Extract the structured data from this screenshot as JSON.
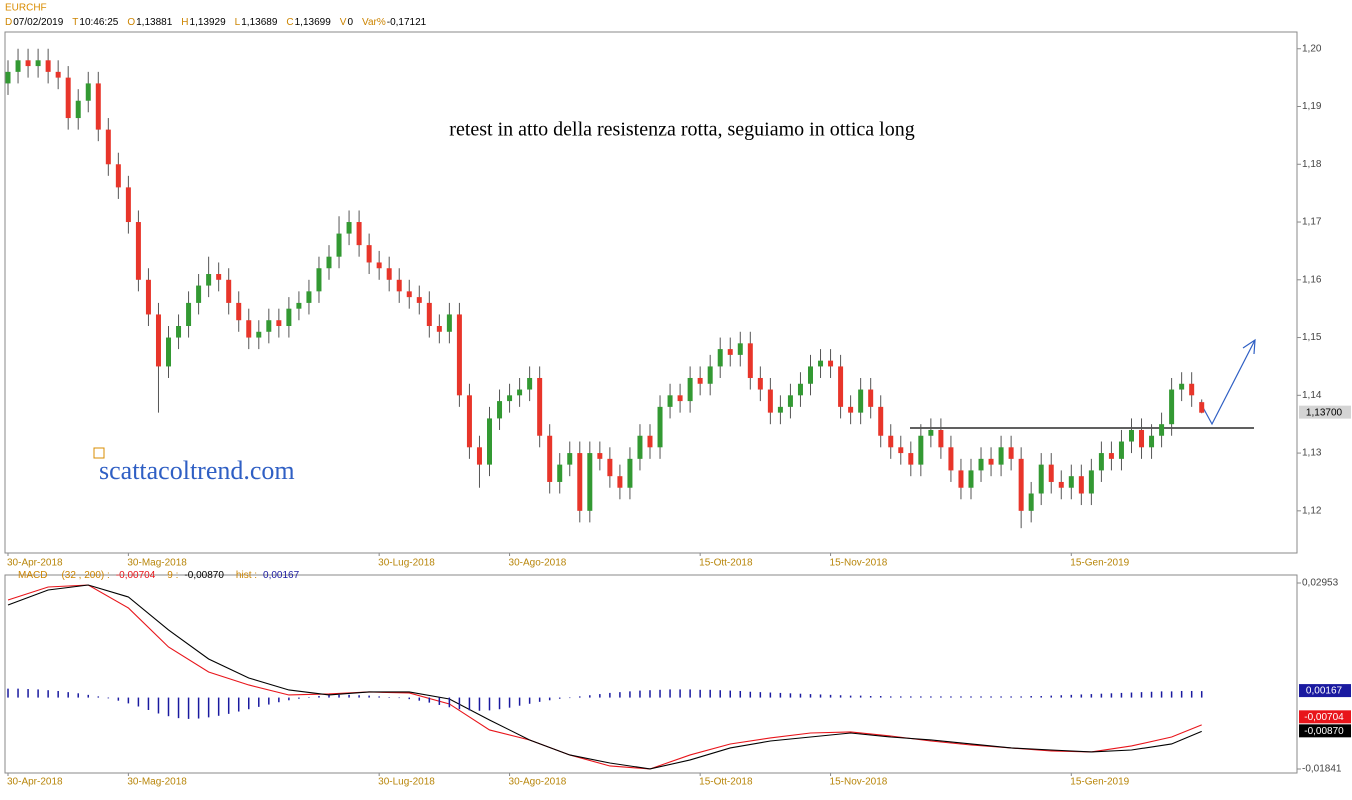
{
  "chart_data": [
    {
      "type": "candlestick",
      "title": "EURCHF",
      "info": [
        {
          "key": "D",
          "value": "07/02/2019"
        },
        {
          "key": "T",
          "value": "10:46:25"
        },
        {
          "key": "O",
          "value": "1,13881"
        },
        {
          "key": "H",
          "value": "1,13929"
        },
        {
          "key": "L",
          "value": "1,13689"
        },
        {
          "key": "C",
          "value": "1,13699"
        },
        {
          "key": "V",
          "value": "0"
        },
        {
          "key": "Var%",
          "value": "-0,17121"
        }
      ],
      "annotation": "retest in atto della resistenza rotta, seguiamo in ottica long",
      "watermark": "scattacoltrend.com",
      "up_color": "#339933",
      "down_color": "#e8352a",
      "wick_color": "#555555",
      "xlim": [
        -0.3,
        128.5
      ],
      "xticks": [
        {
          "value": 0,
          "label": "30-Apr-2018"
        },
        {
          "value": 12,
          "label": "30-Mag-2018"
        },
        {
          "value": 37,
          "label": "30-Lug-2018"
        },
        {
          "value": 50,
          "label": "30-Ago-2018"
        },
        {
          "value": 69,
          "label": "15-Ott-2018"
        },
        {
          "value": 82,
          "label": "15-Nov-2018"
        },
        {
          "value": 106,
          "label": "15-Gen-2019"
        }
      ],
      "ylim": [
        1.1127,
        1.2029
      ],
      "yticks": [
        {
          "value": 1.12,
          "label": "1,12"
        },
        {
          "value": 1.13,
          "label": "1,13"
        },
        {
          "value": 1.14,
          "label": "1,14"
        },
        {
          "value": 1.15,
          "label": "1,15"
        },
        {
          "value": 1.16,
          "label": "1,16"
        },
        {
          "value": 1.17,
          "label": "1,17"
        },
        {
          "value": 1.18,
          "label": "1,18"
        },
        {
          "value": 1.19,
          "label": "1,19"
        },
        {
          "value": 1.2,
          "label": "1,20"
        }
      ],
      "last_price": {
        "value": 1.137,
        "label": "1,13700"
      },
      "open": [
        1.194,
        1.196,
        1.198,
        1.197,
        1.198,
        1.196,
        1.195,
        1.188,
        1.191,
        1.194,
        1.186,
        1.18,
        1.176,
        1.17,
        1.16,
        1.154,
        1.145,
        1.15,
        1.152,
        1.156,
        1.159,
        1.161,
        1.16,
        1.156,
        1.153,
        1.15,
        1.151,
        1.153,
        1.152,
        1.155,
        1.156,
        1.158,
        1.162,
        1.164,
        1.168,
        1.17,
        1.166,
        1.163,
        1.162,
        1.16,
        1.158,
        1.157,
        1.156,
        1.152,
        1.151,
        1.154,
        1.14,
        1.131,
        1.128,
        1.136,
        1.139,
        1.14,
        1.141,
        1.143,
        1.133,
        1.125,
        1.128,
        1.13,
        1.12,
        1.13,
        1.129,
        1.126,
        1.124,
        1.129,
        1.133,
        1.131,
        1.138,
        1.14,
        1.139,
        1.143,
        1.142,
        1.145,
        1.148,
        1.147,
        1.149,
        1.143,
        1.141,
        1.137,
        1.138,
        1.14,
        1.142,
        1.145,
        1.146,
        1.145,
        1.138,
        1.137,
        1.141,
        1.138,
        1.133,
        1.131,
        1.13,
        1.128,
        1.133,
        1.134,
        1.131,
        1.127,
        1.124,
        1.127,
        1.129,
        1.128,
        1.131,
        1.129,
        1.12,
        1.123,
        1.128,
        1.125,
        1.124,
        1.126,
        1.123,
        1.127,
        1.13,
        1.129,
        1.132,
        1.134,
        1.131,
        1.133,
        1.135,
        1.141,
        1.142,
        1.13881
      ],
      "high": [
        1.198,
        1.2,
        1.2,
        1.2,
        1.2,
        1.198,
        1.197,
        1.193,
        1.196,
        1.196,
        1.188,
        1.182,
        1.178,
        1.172,
        1.162,
        1.156,
        1.152,
        1.154,
        1.158,
        1.161,
        1.164,
        1.163,
        1.162,
        1.158,
        1.155,
        1.153,
        1.155,
        1.155,
        1.157,
        1.158,
        1.16,
        1.164,
        1.166,
        1.171,
        1.172,
        1.172,
        1.168,
        1.165,
        1.164,
        1.162,
        1.16,
        1.159,
        1.158,
        1.154,
        1.156,
        1.156,
        1.142,
        1.133,
        1.138,
        1.141,
        1.142,
        1.143,
        1.145,
        1.145,
        1.135,
        1.13,
        1.132,
        1.132,
        1.132,
        1.132,
        1.131,
        1.128,
        1.131,
        1.135,
        1.135,
        1.14,
        1.142,
        1.142,
        1.145,
        1.145,
        1.147,
        1.15,
        1.15,
        1.151,
        1.151,
        1.145,
        1.143,
        1.14,
        1.142,
        1.144,
        1.147,
        1.148,
        1.148,
        1.147,
        1.14,
        1.143,
        1.143,
        1.14,
        1.135,
        1.133,
        1.132,
        1.135,
        1.136,
        1.136,
        1.133,
        1.129,
        1.129,
        1.131,
        1.131,
        1.133,
        1.133,
        1.131,
        1.125,
        1.13,
        1.13,
        1.127,
        1.128,
        1.128,
        1.129,
        1.132,
        1.132,
        1.134,
        1.136,
        1.136,
        1.135,
        1.137,
        1.143,
        1.144,
        1.144,
        1.13929
      ],
      "low": [
        1.192,
        1.194,
        1.195,
        1.195,
        1.194,
        1.193,
        1.186,
        1.186,
        1.189,
        1.184,
        1.178,
        1.174,
        1.168,
        1.158,
        1.152,
        1.137,
        1.143,
        1.148,
        1.15,
        1.154,
        1.157,
        1.158,
        1.154,
        1.151,
        1.148,
        1.148,
        1.149,
        1.15,
        1.15,
        1.153,
        1.154,
        1.156,
        1.16,
        1.162,
        1.166,
        1.164,
        1.161,
        1.16,
        1.158,
        1.156,
        1.155,
        1.154,
        1.15,
        1.149,
        1.149,
        1.138,
        1.129,
        1.124,
        1.126,
        1.134,
        1.137,
        1.138,
        1.139,
        1.131,
        1.123,
        1.123,
        1.126,
        1.118,
        1.118,
        1.127,
        1.124,
        1.122,
        1.122,
        1.127,
        1.129,
        1.129,
        1.136,
        1.137,
        1.137,
        1.14,
        1.14,
        1.143,
        1.145,
        1.145,
        1.141,
        1.139,
        1.135,
        1.135,
        1.136,
        1.138,
        1.14,
        1.143,
        1.143,
        1.136,
        1.135,
        1.135,
        1.136,
        1.131,
        1.129,
        1.128,
        1.126,
        1.126,
        1.131,
        1.129,
        1.125,
        1.122,
        1.122,
        1.125,
        1.126,
        1.126,
        1.127,
        1.117,
        1.118,
        1.121,
        1.123,
        1.122,
        1.122,
        1.121,
        1.121,
        1.125,
        1.127,
        1.127,
        1.13,
        1.129,
        1.129,
        1.131,
        1.133,
        1.139,
        1.138,
        1.13689
      ],
      "close": [
        1.196,
        1.198,
        1.197,
        1.198,
        1.196,
        1.195,
        1.188,
        1.191,
        1.194,
        1.186,
        1.18,
        1.176,
        1.17,
        1.16,
        1.154,
        1.145,
        1.15,
        1.152,
        1.156,
        1.159,
        1.161,
        1.16,
        1.156,
        1.153,
        1.15,
        1.151,
        1.153,
        1.152,
        1.155,
        1.156,
        1.158,
        1.162,
        1.164,
        1.168,
        1.17,
        1.166,
        1.163,
        1.162,
        1.16,
        1.158,
        1.157,
        1.156,
        1.152,
        1.151,
        1.154,
        1.14,
        1.131,
        1.128,
        1.136,
        1.139,
        1.14,
        1.141,
        1.143,
        1.133,
        1.125,
        1.128,
        1.13,
        1.12,
        1.13,
        1.129,
        1.126,
        1.124,
        1.129,
        1.133,
        1.131,
        1.138,
        1.14,
        1.139,
        1.143,
        1.142,
        1.145,
        1.148,
        1.147,
        1.149,
        1.143,
        1.141,
        1.137,
        1.138,
        1.14,
        1.142,
        1.145,
        1.146,
        1.145,
        1.138,
        1.137,
        1.141,
        1.138,
        1.133,
        1.131,
        1.13,
        1.128,
        1.133,
        1.134,
        1.131,
        1.127,
        1.124,
        1.127,
        1.129,
        1.128,
        1.131,
        1.129,
        1.12,
        1.123,
        1.128,
        1.125,
        1.124,
        1.126,
        1.123,
        1.127,
        1.13,
        1.129,
        1.132,
        1.134,
        1.131,
        1.133,
        1.135,
        1.141,
        1.142,
        1.14,
        1.13699
      ]
    },
    {
      "type": "line",
      "xlim": [
        -0.3,
        128.5
      ],
      "xticks": [
        {
          "value": 0,
          "label": "30-Apr-2018"
        },
        {
          "value": 12,
          "label": "30-Mag-2018"
        },
        {
          "value": 37,
          "label": "30-Lug-2018"
        },
        {
          "value": 50,
          "label": "30-Ago-2018"
        },
        {
          "value": 69,
          "label": "15-Ott-2018"
        },
        {
          "value": 82,
          "label": "15-Nov-2018"
        },
        {
          "value": 106,
          "label": "15-Gen-2019"
        }
      ],
      "ylim": [
        -0.01944,
        0.03159
      ],
      "yticks": [
        {
          "value": 0.02953,
          "label": "0,02953"
        },
        {
          "value": -0.01841,
          "label": "-0,01841"
        }
      ],
      "series": [
        {
          "name": "MACD",
          "params": "(32 , 200) :",
          "color": "#e8151b",
          "last_label": "-0,00704",
          "x": [
            0,
            4,
            8,
            12,
            16,
            20,
            24,
            28,
            32,
            36,
            40,
            44,
            48,
            52,
            56,
            60,
            64,
            68,
            72,
            76,
            80,
            84,
            88,
            92,
            96,
            100,
            104,
            108,
            112,
            116,
            119
          ],
          "values": [
            0.02515,
            0.0285,
            0.02901,
            0.02309,
            0.01304,
            0.00659,
            0.00325,
            0.00067,
            0.00093,
            0.00144,
            0.00119,
            -0.00165,
            -0.00835,
            -0.01093,
            -0.01479,
            -0.01763,
            -0.0184,
            -0.01479,
            -0.01196,
            -0.01041,
            -0.00913,
            -0.00887,
            -0.0099,
            -0.01119,
            -0.01222,
            -0.01299,
            -0.01376,
            -0.01402,
            -0.01247,
            -0.01016,
            -0.00704
          ]
        },
        {
          "name": "9 :",
          "color": "#000000",
          "last_label": "-0,00870",
          "x": [
            0,
            4,
            8,
            12,
            16,
            20,
            24,
            28,
            32,
            36,
            40,
            44,
            48,
            52,
            56,
            60,
            64,
            68,
            72,
            76,
            80,
            84,
            88,
            92,
            96,
            100,
            104,
            108,
            112,
            116,
            119
          ],
          "values": [
            0.02386,
            0.02773,
            0.02901,
            0.02592,
            0.01742,
            0.00995,
            0.00505,
            0.00196,
            0.00067,
            0.00144,
            0.00144,
            -0.00036,
            -0.00577,
            -0.01093,
            -0.01479,
            -0.01686,
            -0.0184,
            -0.01608,
            -0.01299,
            -0.01119,
            -0.01016,
            -0.00913,
            -0.01016,
            -0.01093,
            -0.01196,
            -0.01299,
            -0.01351,
            -0.01402,
            -0.01351,
            -0.01196,
            -0.0087
          ]
        },
        {
          "name": "hist :",
          "style": "bar",
          "color": "#1a1aa0",
          "last_label": "0,00167",
          "values": [
            0.0023,
            0.0023,
            0.0022,
            0.0021,
            0.0019,
            0.0017,
            0.0014,
            0.0011,
            0.0007,
            0.0003,
            -0.0002,
            -0.0008,
            -0.0015,
            -0.0023,
            -0.0032,
            -0.0041,
            -0.0048,
            -0.0053,
            -0.0055,
            -0.0054,
            -0.0051,
            -0.0047,
            -0.0042,
            -0.0036,
            -0.003,
            -0.0024,
            -0.0018,
            -0.0012,
            -0.0007,
            -0.0003,
            0.0001,
            0.0004,
            0.0006,
            0.0007,
            0.0007,
            0.0006,
            0.0005,
            0.0003,
            0.0001,
            -0.0001,
            -0.0004,
            -0.0008,
            -0.0013,
            -0.0019,
            -0.0025,
            -0.003,
            -0.0033,
            -0.0034,
            -0.0033,
            -0.003,
            -0.0026,
            -0.0021,
            -0.0016,
            -0.0011,
            -0.0007,
            -0.0003,
            0.0,
            0.0003,
            0.0006,
            0.0009,
            0.0012,
            0.0014,
            0.0016,
            0.0018,
            0.0019,
            0.002,
            0.0021,
            0.0021,
            0.0021,
            0.002,
            0.002,
            0.0019,
            0.0018,
            0.0017,
            0.0015,
            0.0014,
            0.0013,
            0.0012,
            0.0011,
            0.001,
            0.0009,
            0.0008,
            0.0007,
            0.0006,
            0.0005,
            0.0005,
            0.0004,
            0.0004,
            0.0003,
            0.0003,
            0.0003,
            0.0003,
            0.0003,
            0.0003,
            0.0003,
            0.0003,
            0.0003,
            0.0003,
            0.0003,
            0.0003,
            0.0003,
            0.0003,
            0.0004,
            0.0004,
            0.0005,
            0.0006,
            0.0007,
            0.0008,
            0.0009,
            0.001,
            0.0011,
            0.0012,
            0.0013,
            0.0014,
            0.0015,
            0.0016,
            0.0016,
            0.0017,
            0.0017,
            0.00167
          ]
        }
      ]
    }
  ]
}
